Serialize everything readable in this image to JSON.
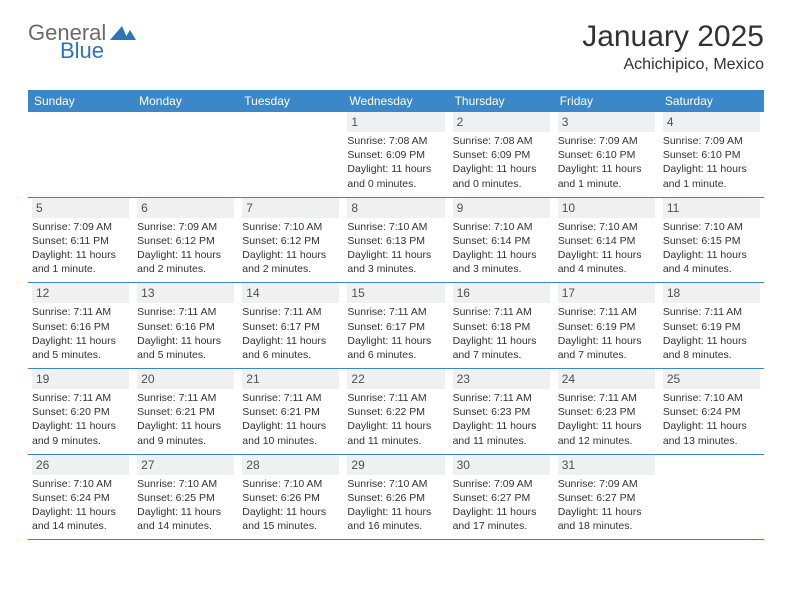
{
  "logo": {
    "text1": "General",
    "text2": "Blue",
    "color1": "#6a6a6a",
    "color2": "#2d75b6",
    "icon_color": "#2d75b6"
  },
  "title": "January 2025",
  "location": "Achichipico, Mexico",
  "colors": {
    "header_bg": "#3b87c8",
    "header_fg": "#ffffff",
    "daynum_bg": "#eef0f1",
    "daynum_fg": "#505050",
    "rule": "#3b87c8",
    "text": "#333333",
    "page_bg": "#ffffff"
  },
  "dow": [
    "Sunday",
    "Monday",
    "Tuesday",
    "Wednesday",
    "Thursday",
    "Friday",
    "Saturday"
  ],
  "weeks": [
    [
      null,
      null,
      null,
      {
        "n": "1",
        "sr": "7:08 AM",
        "ss": "6:09 PM",
        "dl": "11 hours and 0 minutes."
      },
      {
        "n": "2",
        "sr": "7:08 AM",
        "ss": "6:09 PM",
        "dl": "11 hours and 0 minutes."
      },
      {
        "n": "3",
        "sr": "7:09 AM",
        "ss": "6:10 PM",
        "dl": "11 hours and 1 minute."
      },
      {
        "n": "4",
        "sr": "7:09 AM",
        "ss": "6:10 PM",
        "dl": "11 hours and 1 minute."
      }
    ],
    [
      {
        "n": "5",
        "sr": "7:09 AM",
        "ss": "6:11 PM",
        "dl": "11 hours and 1 minute."
      },
      {
        "n": "6",
        "sr": "7:09 AM",
        "ss": "6:12 PM",
        "dl": "11 hours and 2 minutes."
      },
      {
        "n": "7",
        "sr": "7:10 AM",
        "ss": "6:12 PM",
        "dl": "11 hours and 2 minutes."
      },
      {
        "n": "8",
        "sr": "7:10 AM",
        "ss": "6:13 PM",
        "dl": "11 hours and 3 minutes."
      },
      {
        "n": "9",
        "sr": "7:10 AM",
        "ss": "6:14 PM",
        "dl": "11 hours and 3 minutes."
      },
      {
        "n": "10",
        "sr": "7:10 AM",
        "ss": "6:14 PM",
        "dl": "11 hours and 4 minutes."
      },
      {
        "n": "11",
        "sr": "7:10 AM",
        "ss": "6:15 PM",
        "dl": "11 hours and 4 minutes."
      }
    ],
    [
      {
        "n": "12",
        "sr": "7:11 AM",
        "ss": "6:16 PM",
        "dl": "11 hours and 5 minutes."
      },
      {
        "n": "13",
        "sr": "7:11 AM",
        "ss": "6:16 PM",
        "dl": "11 hours and 5 minutes."
      },
      {
        "n": "14",
        "sr": "7:11 AM",
        "ss": "6:17 PM",
        "dl": "11 hours and 6 minutes."
      },
      {
        "n": "15",
        "sr": "7:11 AM",
        "ss": "6:17 PM",
        "dl": "11 hours and 6 minutes."
      },
      {
        "n": "16",
        "sr": "7:11 AM",
        "ss": "6:18 PM",
        "dl": "11 hours and 7 minutes."
      },
      {
        "n": "17",
        "sr": "7:11 AM",
        "ss": "6:19 PM",
        "dl": "11 hours and 7 minutes."
      },
      {
        "n": "18",
        "sr": "7:11 AM",
        "ss": "6:19 PM",
        "dl": "11 hours and 8 minutes."
      }
    ],
    [
      {
        "n": "19",
        "sr": "7:11 AM",
        "ss": "6:20 PM",
        "dl": "11 hours and 9 minutes."
      },
      {
        "n": "20",
        "sr": "7:11 AM",
        "ss": "6:21 PM",
        "dl": "11 hours and 9 minutes."
      },
      {
        "n": "21",
        "sr": "7:11 AM",
        "ss": "6:21 PM",
        "dl": "11 hours and 10 minutes."
      },
      {
        "n": "22",
        "sr": "7:11 AM",
        "ss": "6:22 PM",
        "dl": "11 hours and 11 minutes."
      },
      {
        "n": "23",
        "sr": "7:11 AM",
        "ss": "6:23 PM",
        "dl": "11 hours and 11 minutes."
      },
      {
        "n": "24",
        "sr": "7:11 AM",
        "ss": "6:23 PM",
        "dl": "11 hours and 12 minutes."
      },
      {
        "n": "25",
        "sr": "7:10 AM",
        "ss": "6:24 PM",
        "dl": "11 hours and 13 minutes."
      }
    ],
    [
      {
        "n": "26",
        "sr": "7:10 AM",
        "ss": "6:24 PM",
        "dl": "11 hours and 14 minutes."
      },
      {
        "n": "27",
        "sr": "7:10 AM",
        "ss": "6:25 PM",
        "dl": "11 hours and 14 minutes."
      },
      {
        "n": "28",
        "sr": "7:10 AM",
        "ss": "6:26 PM",
        "dl": "11 hours and 15 minutes."
      },
      {
        "n": "29",
        "sr": "7:10 AM",
        "ss": "6:26 PM",
        "dl": "11 hours and 16 minutes."
      },
      {
        "n": "30",
        "sr": "7:09 AM",
        "ss": "6:27 PM",
        "dl": "11 hours and 17 minutes."
      },
      {
        "n": "31",
        "sr": "7:09 AM",
        "ss": "6:27 PM",
        "dl": "11 hours and 18 minutes."
      },
      null
    ]
  ],
  "labels": {
    "sunrise": "Sunrise:",
    "sunset": "Sunset:",
    "daylight": "Daylight:"
  }
}
